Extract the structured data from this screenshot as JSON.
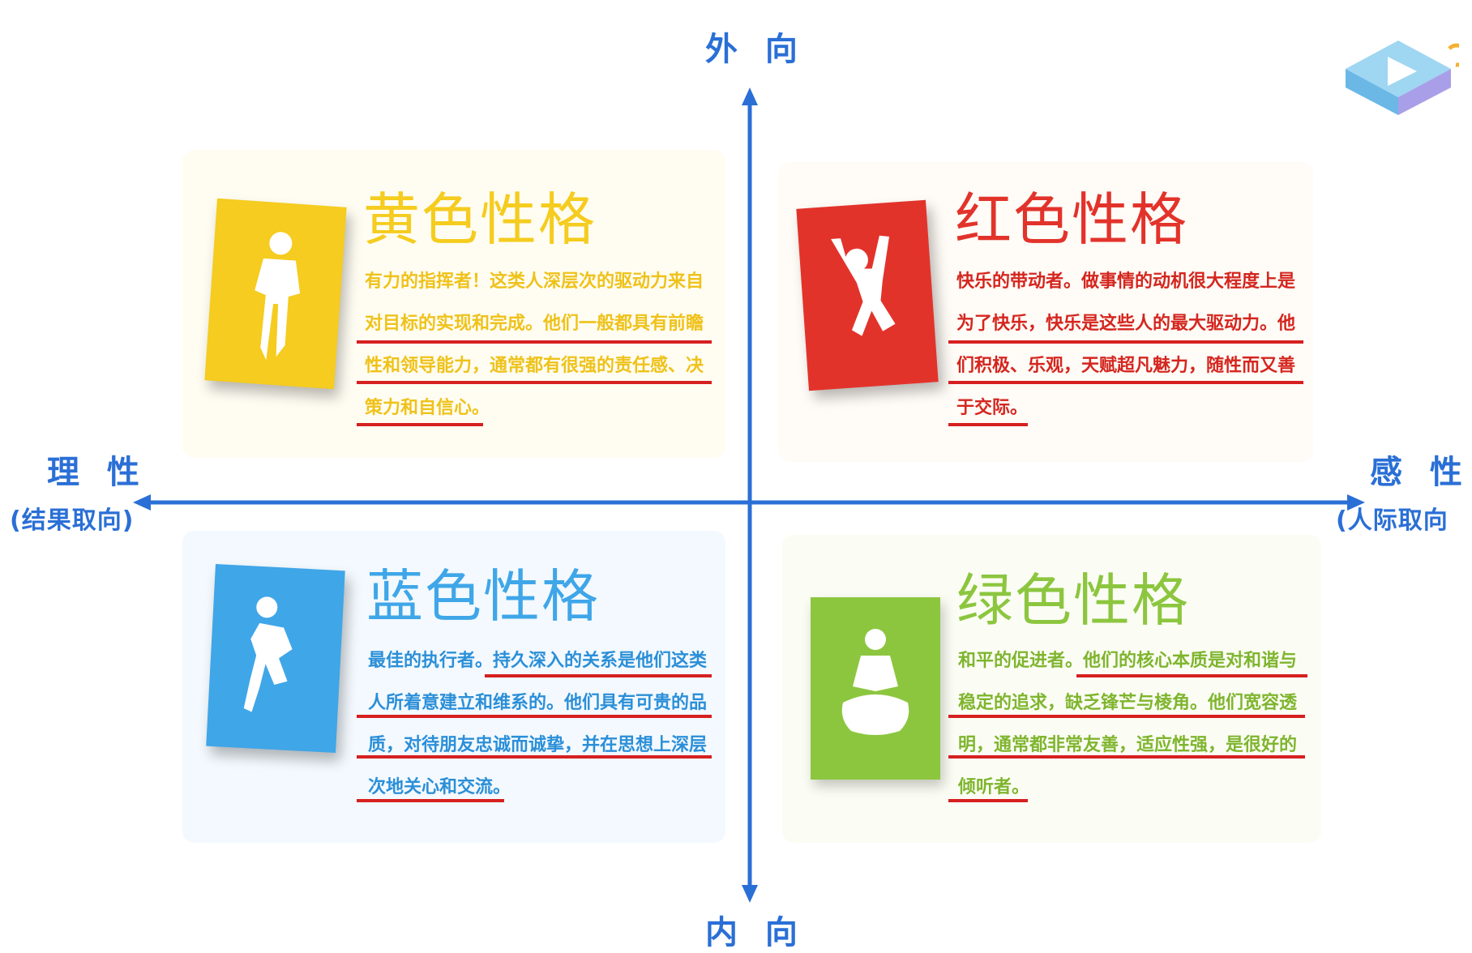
{
  "axes": {
    "top": "外 向",
    "bottom": "内 向",
    "left_main": "理 性",
    "left_sub": "(结果取向)",
    "right_main": "感 性",
    "right_sub": "(人际取向"
  },
  "quadrants": {
    "yellow": {
      "title": "黄色性格",
      "description": "有力的指挥者！这类人深层次的驱动力来自对目标的实现和完成。他们一般都具有前瞻性和领导能力，通常都有很强的责任感、决策力和自信心。",
      "color": "#f5cc1f",
      "icon": "standing-person-icon"
    },
    "red": {
      "title": "红色性格",
      "description": "快乐的带动者。做事情的动机很大程度上是为了快乐，快乐是这些人的最大驱动力。他们积极、乐观，天赋超凡魅力，随性而又善于交际。",
      "color": "#e2332b",
      "icon": "jumping-person-icon"
    },
    "blue": {
      "title": "蓝色性格",
      "description": "最佳的执行者。持久深入的关系是他们这类人所着意建立和维系的。他们具有可贵的品质，对待朋友忠诚而诚挚，并在思想上深层次地关心和交流。",
      "color": "#3fa6e8",
      "icon": "thinking-person-icon"
    },
    "green": {
      "title": "绿色性格",
      "description": "和平的促进者。他们的核心本质是对和谐与稳定的追求，缺乏锋芒与棱角。他们宽容透明，通常都非常友善，适应性强，是很好的倾听者。",
      "color": "#8cc63f",
      "icon": "meditating-person-icon"
    }
  },
  "colors": {
    "axis": "#2a6fd6",
    "underline": "#d62020"
  }
}
